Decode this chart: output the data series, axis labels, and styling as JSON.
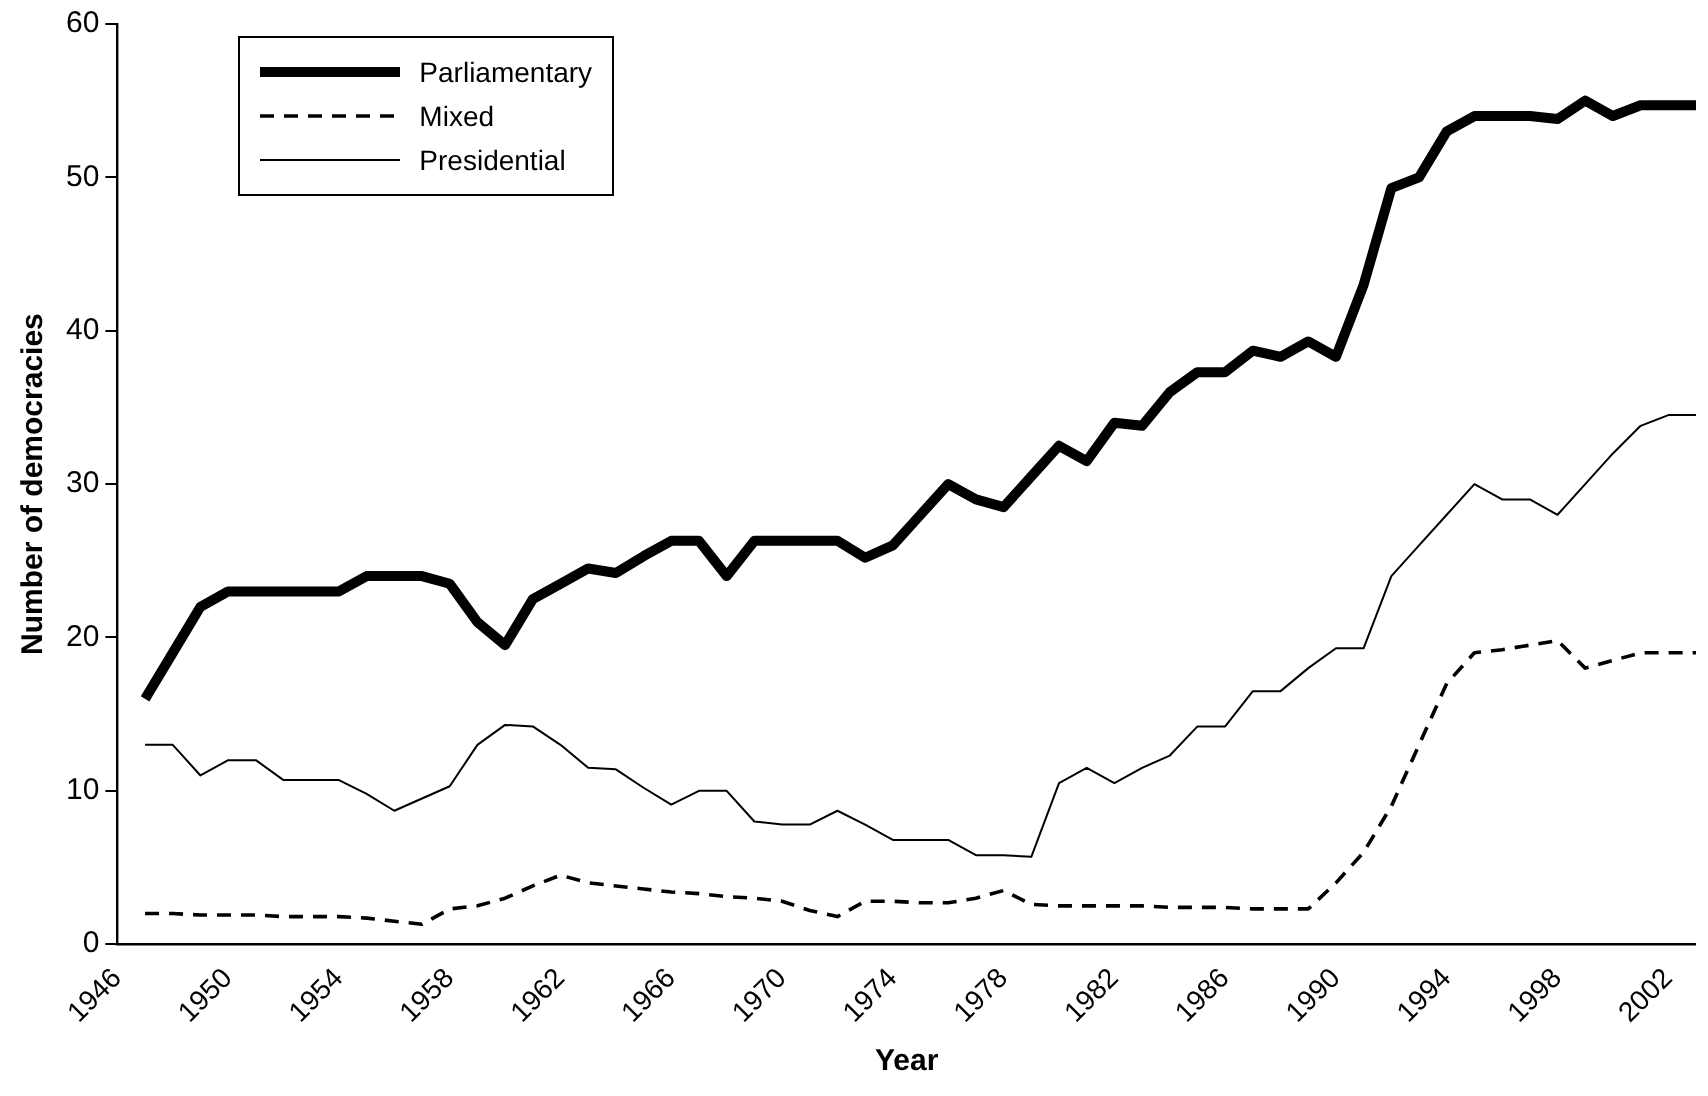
{
  "chart_data": {
    "type": "line",
    "xlabel": "Year",
    "ylabel": "Number of democracies",
    "x": [
      1947,
      1948,
      1949,
      1950,
      1951,
      1952,
      1953,
      1954,
      1955,
      1956,
      1957,
      1958,
      1959,
      1960,
      1961,
      1962,
      1963,
      1964,
      1965,
      1966,
      1967,
      1968,
      1969,
      1970,
      1971,
      1972,
      1973,
      1974,
      1975,
      1976,
      1977,
      1978,
      1979,
      1980,
      1981,
      1982,
      1983,
      1984,
      1985,
      1986,
      1987,
      1988,
      1989,
      1990,
      1991,
      1992,
      1993,
      1994,
      1995,
      1996,
      1997,
      1998,
      1999,
      2000,
      2001,
      2002,
      2003
    ],
    "series": [
      {
        "name": "Parliamentary",
        "color": "#000000",
        "line_style": "solid",
        "values": [
          16,
          19,
          22,
          23,
          23,
          23,
          23,
          23,
          24,
          24,
          24,
          23.5,
          21,
          19.5,
          22.5,
          23.5,
          24.5,
          24.2,
          25.3,
          26.3,
          26.3,
          24,
          26.3,
          26.3,
          26.3,
          26.3,
          25.2,
          26,
          28,
          30,
          29,
          28.5,
          30.5,
          32.5,
          31.5,
          34,
          33.8,
          36,
          37.3,
          37.3,
          38.7,
          38.3,
          39.3,
          38.3,
          43,
          49.3,
          50,
          53,
          54,
          54,
          54,
          53.8,
          55,
          54,
          54.7,
          54.7,
          54.7
        ]
      },
      {
        "name": "Mixed",
        "color": "#000000",
        "line_style": "dashed",
        "values": [
          2,
          2,
          1.9,
          1.9,
          1.9,
          1.8,
          1.8,
          1.8,
          1.7,
          1.5,
          1.3,
          2.3,
          2.5,
          3,
          3.8,
          4.5,
          4,
          3.8,
          3.6,
          3.4,
          3.3,
          3.1,
          3,
          2.8,
          2.2,
          1.8,
          2.8,
          2.8,
          2.7,
          2.7,
          3,
          3.5,
          2.6,
          2.5,
          2.5,
          2.5,
          2.5,
          2.4,
          2.4,
          2.4,
          2.3,
          2.3,
          2.3,
          4,
          6,
          9,
          13,
          17,
          19,
          19.2,
          19.5,
          19.8,
          18,
          18.5,
          19,
          19,
          19
        ]
      },
      {
        "name": "Presidential",
        "color": "#000000",
        "line_style": "solid",
        "values": [
          13,
          13,
          11,
          12,
          12,
          10.7,
          10.7,
          10.7,
          9.8,
          8.7,
          9.5,
          10.3,
          13,
          14.3,
          14.2,
          13,
          11.5,
          11.4,
          10.2,
          9.1,
          10,
          10,
          8,
          7.8,
          7.8,
          8.7,
          7.8,
          6.8,
          6.8,
          6.8,
          5.8,
          5.8,
          5.7,
          10.5,
          11.5,
          10.5,
          11.5,
          12.3,
          14.2,
          14.2,
          16.5,
          16.5,
          18,
          19.3,
          19.3,
          24,
          26,
          28,
          30,
          29,
          29,
          28,
          30,
          32,
          33.8,
          34.5,
          34.5
        ]
      }
    ],
    "xlim": [
      1946,
      2003
    ],
    "xticks": [
      1946,
      1950,
      1954,
      1958,
      1962,
      1966,
      1970,
      1974,
      1978,
      1982,
      1986,
      1990,
      1994,
      1998,
      2002
    ],
    "ylim": [
      0,
      60
    ],
    "yticks": [
      0,
      10,
      20,
      30,
      40,
      50,
      60
    ],
    "grid": false,
    "legend": "top left",
    "marker": "none"
  }
}
